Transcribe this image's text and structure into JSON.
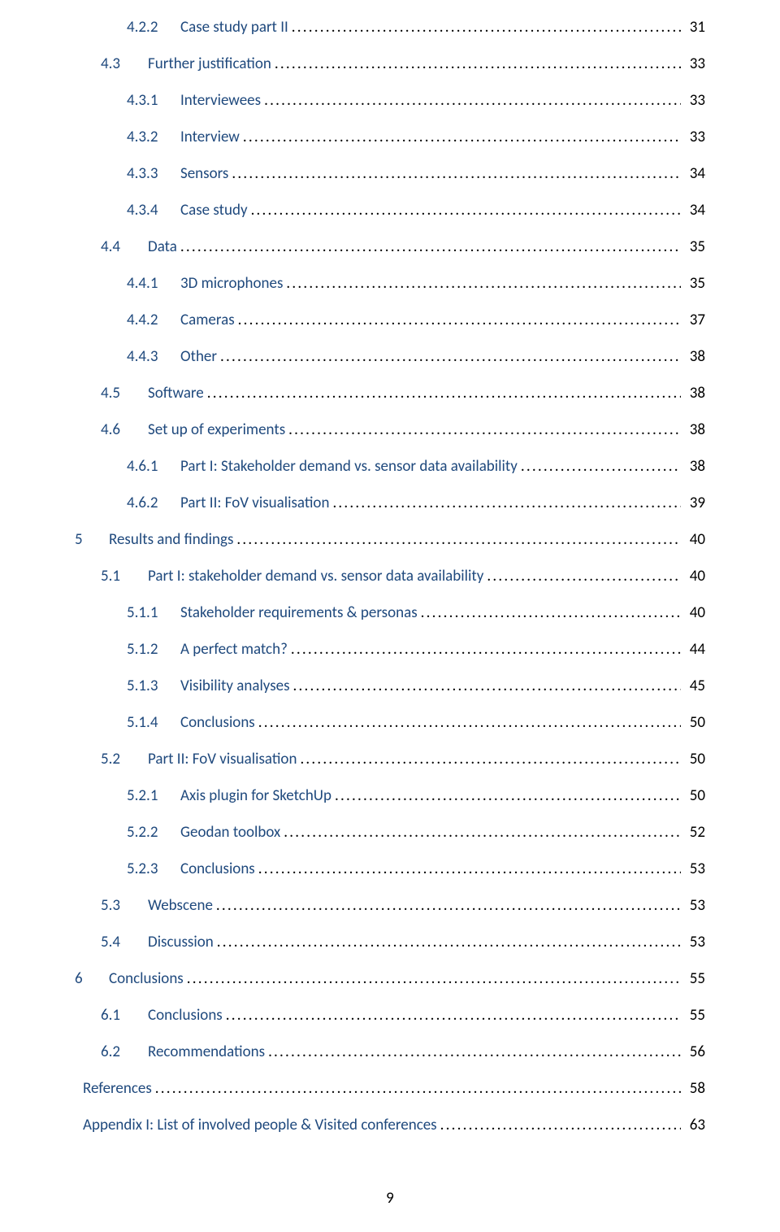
{
  "toc": [
    {
      "indent": 2,
      "num": "4.2.2",
      "numw": "w-num2",
      "label": "Case study part II",
      "page": "31",
      "color": "link"
    },
    {
      "indent": 1,
      "num": "4.3",
      "numw": "w-num1",
      "label": "Further justification",
      "page": "33",
      "color": "link"
    },
    {
      "indent": 2,
      "num": "4.3.1",
      "numw": "w-num2",
      "label": "Interviewees",
      "page": "33",
      "color": "link"
    },
    {
      "indent": 2,
      "num": "4.3.2",
      "numw": "w-num2",
      "label": "Interview",
      "page": "33",
      "color": "link"
    },
    {
      "indent": 2,
      "num": "4.3.3",
      "numw": "w-num2",
      "label": "Sensors",
      "page": "34",
      "color": "link"
    },
    {
      "indent": 2,
      "num": "4.3.4",
      "numw": "w-num2",
      "label": "Case study",
      "page": "34",
      "color": "link"
    },
    {
      "indent": 1,
      "num": "4.4",
      "numw": "w-num1",
      "label": "Data",
      "page": "35",
      "color": "link"
    },
    {
      "indent": 2,
      "num": "4.4.1",
      "numw": "w-num2",
      "label": "3D microphones",
      "page": "35",
      "color": "link"
    },
    {
      "indent": 2,
      "num": "4.4.2",
      "numw": "w-num2",
      "label": "Cameras",
      "page": "37",
      "color": "link"
    },
    {
      "indent": 2,
      "num": "4.4.3",
      "numw": "w-num2",
      "label": "Other",
      "page": "38",
      "color": "link"
    },
    {
      "indent": 1,
      "num": "4.5",
      "numw": "w-num1",
      "label": "Software",
      "page": "38",
      "color": "link"
    },
    {
      "indent": 1,
      "num": "4.6",
      "numw": "w-num1",
      "label": "Set up of experiments",
      "page": "38",
      "color": "link"
    },
    {
      "indent": 2,
      "num": "4.6.1",
      "numw": "w-num2",
      "label": "Part I: Stakeholder demand vs. sensor data availability",
      "page": "38",
      "color": "link"
    },
    {
      "indent": 2,
      "num": "4.6.2",
      "numw": "w-num2",
      "label": "Part II: FoV visualisation",
      "page": "39",
      "color": "link"
    },
    {
      "indent": 0,
      "num": "5",
      "numw": "w-num0",
      "label": "Results and findings",
      "page": "40",
      "color": "link"
    },
    {
      "indent": 1,
      "num": "5.1",
      "numw": "w-num1",
      "label": "Part I: stakeholder demand vs. sensor data availability",
      "page": "40",
      "color": "link"
    },
    {
      "indent": 2,
      "num": "5.1.1",
      "numw": "w-num2",
      "label": "Stakeholder requirements & personas",
      "page": "40",
      "color": "link"
    },
    {
      "indent": 2,
      "num": "5.1.2",
      "numw": "w-num2",
      "label": "A perfect match?",
      "page": "44",
      "color": "link"
    },
    {
      "indent": 2,
      "num": "5.1.3",
      "numw": "w-num2",
      "label": "Visibility analyses",
      "page": "45",
      "color": "link"
    },
    {
      "indent": 2,
      "num": "5.1.4",
      "numw": "w-num2",
      "label": "Conclusions",
      "page": "50",
      "color": "link"
    },
    {
      "indent": 1,
      "num": "5.2",
      "numw": "w-num1",
      "label": "Part II: FoV visualisation",
      "page": "50",
      "color": "link"
    },
    {
      "indent": 2,
      "num": "5.2.1",
      "numw": "w-num2",
      "label": "Axis plugin for SketchUp",
      "page": "50",
      "color": "link"
    },
    {
      "indent": 2,
      "num": "5.2.2",
      "numw": "w-num2",
      "label": "Geodan toolbox",
      "page": "52",
      "color": "link"
    },
    {
      "indent": 2,
      "num": "5.2.3",
      "numw": "w-num2",
      "label": "Conclusions",
      "page": "53",
      "color": "link"
    },
    {
      "indent": 1,
      "num": "5.3",
      "numw": "w-num1",
      "label": "Webscene",
      "page": "53",
      "color": "link"
    },
    {
      "indent": 1,
      "num": "5.4",
      "numw": "w-num1",
      "label": "Discussion",
      "page": "53",
      "color": "link"
    },
    {
      "indent": 0,
      "num": "6",
      "numw": "w-num0",
      "label": "Conclusions",
      "page": "55",
      "color": "link"
    },
    {
      "indent": 1,
      "num": "6.1",
      "numw": "w-num1",
      "label": "Conclusions",
      "page": "55",
      "color": "link"
    },
    {
      "indent": 1,
      "num": "6.2",
      "numw": "w-num1",
      "label": "Recommendations",
      "page": "56",
      "color": "link"
    },
    {
      "indent": 0,
      "num": "",
      "numw": "blank0",
      "label": "References",
      "page": "58",
      "color": "link"
    },
    {
      "indent": 0,
      "num": "",
      "numw": "blank0",
      "label": "Appendix I: List of involved people & Visited conferences",
      "page": "63",
      "color": "link"
    }
  ],
  "footer_page_number": "9",
  "colors": {
    "link": "#1f497d",
    "text": "#000000",
    "background": "#ffffff"
  },
  "typography": {
    "font_family": "Calibri",
    "font_size_pt": 11
  }
}
